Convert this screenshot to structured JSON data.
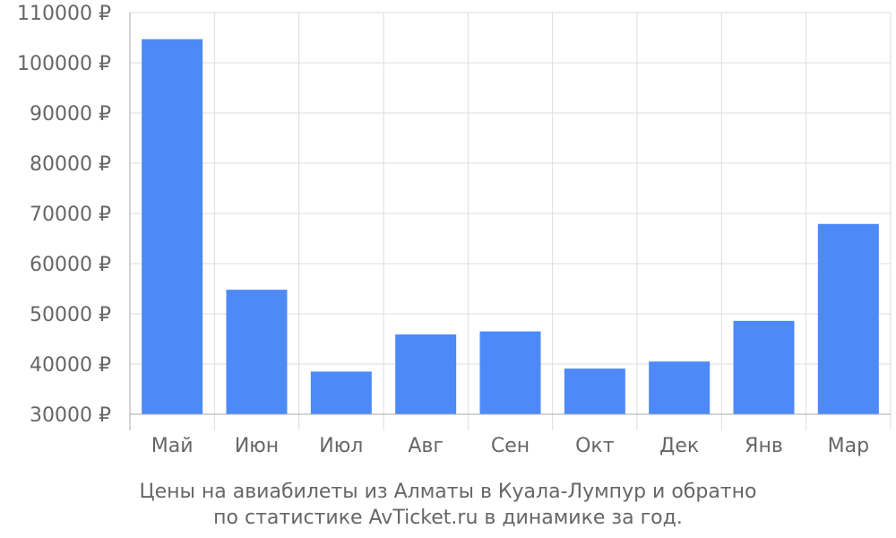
{
  "chart_data": {
    "type": "bar",
    "caption": [
      "Цены на авиабилеты из Алматы в Куала-Лумпур и обратно",
      "по статистике AvTicket.ru в динамике за год."
    ],
    "categories": [
      "Май",
      "Июн",
      "Июл",
      "Авг",
      "Сен",
      "Окт",
      "Дек",
      "Янв",
      "Мар"
    ],
    "values": [
      104700,
      54800,
      38500,
      45900,
      46500,
      39100,
      40500,
      48600,
      67900
    ],
    "ylim": [
      30000,
      110000
    ],
    "yticks": [
      30000,
      40000,
      50000,
      60000,
      70000,
      80000,
      90000,
      100000,
      110000
    ],
    "ytick_labels": [
      "30000 ₽",
      "40000 ₽",
      "50000 ₽",
      "60000 ₽",
      "70000 ₽",
      "80000 ₽",
      "90000 ₽",
      "100000 ₽",
      "110000 ₽"
    ],
    "grid": true,
    "bar_color": "#4d8af7"
  }
}
